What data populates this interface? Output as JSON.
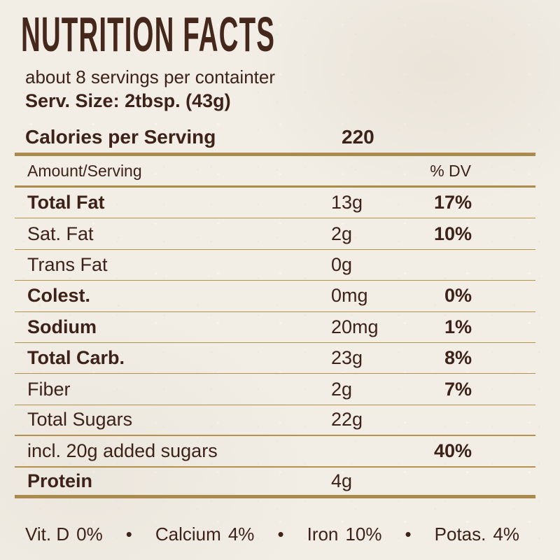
{
  "title": "NUTRITION FACTS",
  "intro": {
    "servings_line": "about 8 servings per containter",
    "serving_size_line": "Serv. Size: 2tbsp. (43g)"
  },
  "calories": {
    "label": "Calories per Serving",
    "value": "220"
  },
  "table": {
    "header": {
      "amount_label": "Amount/Serving",
      "dv_label": "% DV"
    },
    "rows": [
      {
        "label": "Total Fat",
        "bold": true,
        "amount": "13g",
        "dv": "17%",
        "rule": "thin"
      },
      {
        "label": "Sat. Fat",
        "bold": false,
        "amount": "2g",
        "dv": "10%",
        "rule": "thin"
      },
      {
        "label": "Trans Fat",
        "bold": false,
        "amount": "0g",
        "dv": "",
        "rule": "thin"
      },
      {
        "label": "Colest.",
        "bold": true,
        "amount": "0mg",
        "dv": "0%",
        "rule": "thin"
      },
      {
        "label": "Sodium",
        "bold": true,
        "amount": "20mg",
        "dv": "1%",
        "rule": "thin"
      },
      {
        "label": "Total Carb.",
        "bold": true,
        "amount": "23g",
        "dv": "8%",
        "rule": "thin"
      },
      {
        "label": "Fiber",
        "bold": false,
        "amount": "2g",
        "dv": "7%",
        "rule": "thin"
      },
      {
        "label": "Total Sugars",
        "bold": false,
        "amount": "22g",
        "dv": "",
        "rule": "medium"
      },
      {
        "label": "incl. 20g added sugars",
        "bold": false,
        "amount": "",
        "dv": "40%",
        "rule": "medium"
      },
      {
        "label": "Protein",
        "bold": true,
        "amount": "4g",
        "dv": "",
        "rule": "thick"
      }
    ]
  },
  "micronutrients": [
    {
      "label": "Vit. D",
      "value": "0%"
    },
    {
      "label": "Calcium",
      "value": "4%"
    },
    {
      "label": "Iron",
      "value": "10%"
    },
    {
      "label": "Potas.",
      "value": "4%"
    }
  ],
  "separator": "•",
  "colors": {
    "text": "#3d2219",
    "title": "#45281b",
    "rule_gold": "#ab8a4e",
    "background": "#f2eee6"
  }
}
